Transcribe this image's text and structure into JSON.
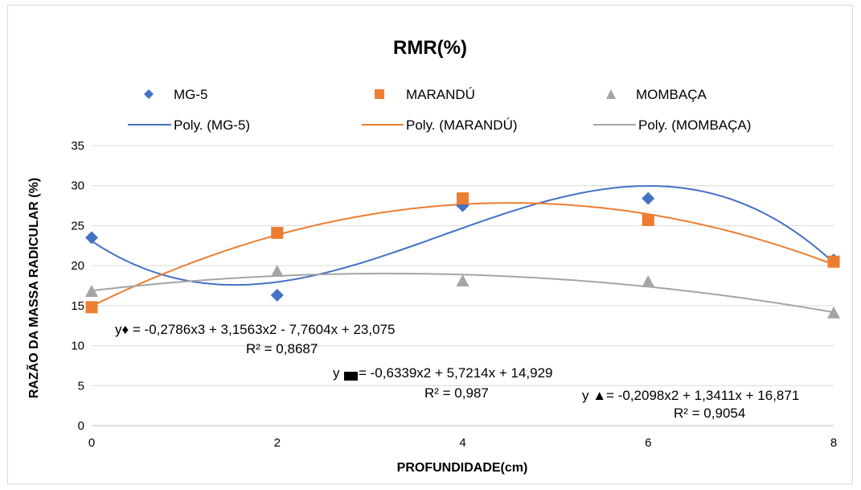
{
  "chart_data": {
    "type": "scatter",
    "title": "RMR(%)",
    "xlabel": "PROFUNDIDADE(cm)",
    "ylabel": "RAZÃO DA MASSA RADICULAR (%)",
    "xlim": [
      0,
      8
    ],
    "ylim": [
      0,
      35
    ],
    "x_ticks": [
      0,
      2,
      4,
      6,
      8
    ],
    "y_ticks": [
      0,
      5,
      10,
      15,
      20,
      25,
      30,
      35
    ],
    "grid": "horizontal",
    "legend_position": "top",
    "series": [
      {
        "name": "MG-5",
        "marker": "diamond",
        "color": "#4472C4",
        "x": [
          0,
          2,
          4,
          6,
          8
        ],
        "y": [
          23.5,
          16.3,
          27.5,
          28.4,
          20.7
        ]
      },
      {
        "name": "MARANDÚ",
        "marker": "square",
        "color": "#ED7D31",
        "x": [
          0,
          2,
          4,
          6,
          8
        ],
        "y": [
          14.8,
          24.1,
          28.4,
          25.7,
          20.5
        ]
      },
      {
        "name": "MOMBAÇA",
        "marker": "triangle",
        "color": "#A5A5A5",
        "x": [
          0,
          2,
          4,
          6,
          8
        ],
        "y": [
          16.8,
          19.3,
          18.1,
          18.0,
          14.1
        ]
      }
    ],
    "trendlines": [
      {
        "name": "Poly. (MG-5)",
        "series": "MG-5",
        "color": "#4472C4",
        "coefficients": [
          23.075,
          -7.7604,
          3.1563,
          -0.2786
        ]
      },
      {
        "name": "Poly. (MARANDÚ)",
        "series": "MARANDÚ",
        "color": "#ED7D31",
        "coefficients": [
          14.929,
          5.7214,
          -0.6339
        ]
      },
      {
        "name": "Poly. (MOMBAÇA)",
        "series": "MOMBAÇA",
        "color": "#A5A5A5",
        "coefficients": [
          16.871,
          1.3411,
          -0.2098
        ]
      }
    ],
    "annotations": [
      {
        "equation": "y♦ = -0,2786x3 + 3,1563x2 - 7,7604x + 23,075",
        "r2": "R² = 0,8687"
      },
      {
        "equation_prefix": "y",
        "equation": "= -0,6339x2 + 5,7214x + 14,929",
        "r2": "R² = 0,987"
      },
      {
        "equation": "y ▲= -0,2098x2 + 1,3411x + 16,871",
        "r2": "R² = 0,9054"
      }
    ]
  }
}
